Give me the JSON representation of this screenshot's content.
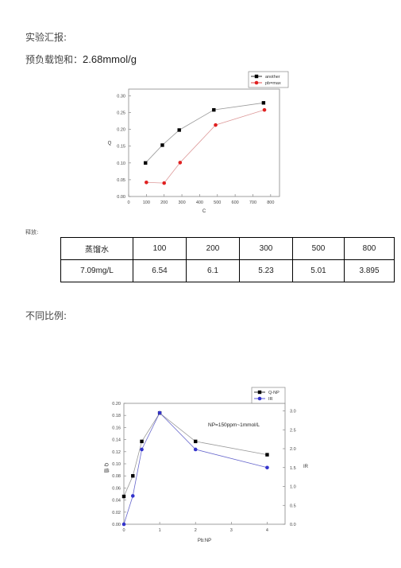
{
  "doc": {
    "heading1": "实验汇报:",
    "heading2_label": "预负载饱和：",
    "heading2_value": "2.68mmol/g",
    "release_label": "释放:",
    "heading3": "不同比例:"
  },
  "table": {
    "header": [
      "蒸馏水",
      "100",
      "200",
      "300",
      "500",
      "800"
    ],
    "row": [
      "7.09mg/L",
      "6.54",
      "6.1",
      "5.23",
      "5.01",
      "3.895"
    ]
  },
  "chart_data": [
    {
      "type": "line",
      "xlabel": "C",
      "ylabel": "Q",
      "xlim": [
        0,
        850
      ],
      "ylim": [
        0,
        0.32
      ],
      "x_ticks": [
        "0",
        "100",
        "200",
        "300",
        "400",
        "500",
        "600",
        "700",
        "800"
      ],
      "y_ticks": [
        "0.00",
        "0.05",
        "0.10",
        "0.15",
        "0.20",
        "0.25",
        "0.30"
      ],
      "legend_position": "top-right",
      "series": [
        {
          "name": "another",
          "color": "#000000",
          "marker": "square",
          "x": [
            95,
            190,
            285,
            480,
            760
          ],
          "y": [
            0.1,
            0.153,
            0.198,
            0.258,
            0.279
          ]
        },
        {
          "name": "pb=max",
          "color": "#e02020",
          "marker": "circle",
          "x": [
            100,
            200,
            290,
            490,
            765
          ],
          "y": [
            0.042,
            0.04,
            0.101,
            0.213,
            0.258
          ]
        }
      ]
    },
    {
      "type": "line",
      "xlabel": "Pb:NP",
      "ylabel": "Q 值",
      "y2label": "IR",
      "annotation": "NP=150ppm~1mmol/L",
      "xlim": [
        0,
        4.5
      ],
      "ylim": [
        0,
        0.2
      ],
      "y2lim": [
        0,
        3.2
      ],
      "x_ticks": [
        "0",
        "1",
        "2",
        "3",
        "4"
      ],
      "y_ticks": [
        "0.00",
        "0.02",
        "0.04",
        "0.06",
        "0.08",
        "0.10",
        "0.12",
        "0.14",
        "0.16",
        "0.18",
        "0.20"
      ],
      "y2_ticks": [
        "0.0",
        "0.5",
        "1.0",
        "1.5",
        "2.0",
        "2.5",
        "3.0"
      ],
      "legend_position": "top-right",
      "series": [
        {
          "name": "Q-NP",
          "axis": "left",
          "color": "#000000",
          "marker": "square",
          "x": [
            0,
            0.25,
            0.5,
            1,
            2,
            4
          ],
          "y": [
            0.046,
            0.08,
            0.137,
            0.184,
            0.137,
            0.115
          ]
        },
        {
          "name": "IR",
          "axis": "right",
          "color": "#3333cc",
          "marker": "circle",
          "x": [
            0,
            0.25,
            0.5,
            1,
            2,
            4
          ],
          "y": [
            0.0,
            0.75,
            1.98,
            2.95,
            1.98,
            1.5
          ]
        }
      ]
    }
  ]
}
